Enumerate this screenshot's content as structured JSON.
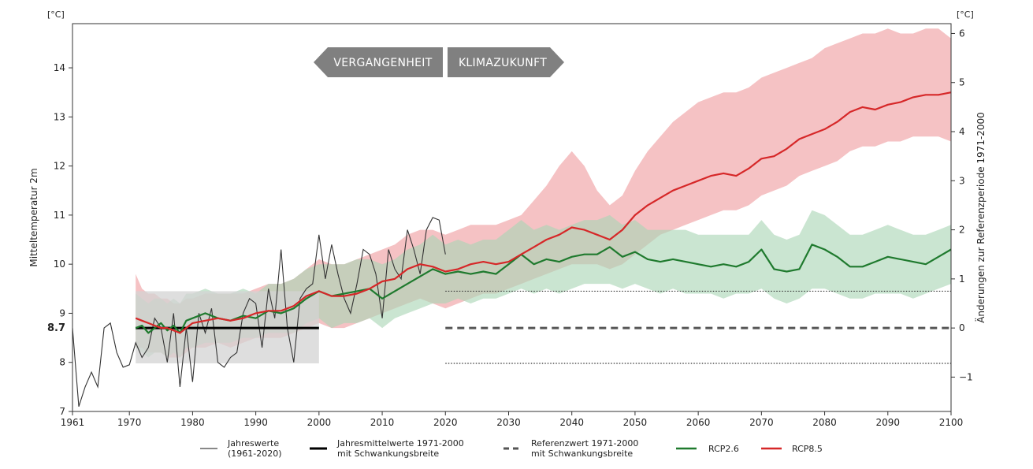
{
  "chart_data": {
    "type": "line",
    "title": "",
    "xlabel": "",
    "ylabel": "Mitteltemperatur 2m",
    "ylabel_right": "Änderungen zur Referenzperiode 1971-2000",
    "unit_left": "[°C]",
    "unit_right": "[°C]",
    "xlim": [
      1961,
      2100
    ],
    "ylim": [
      7,
      14.9
    ],
    "y2lim": [
      -1.7,
      6.2
    ],
    "reference_value": 8.7,
    "reference_label": "8.7",
    "xticks": [
      1961,
      1970,
      1980,
      1990,
      2000,
      2010,
      2020,
      2030,
      2040,
      2050,
      2060,
      2070,
      2080,
      2090,
      2100
    ],
    "yticks": [
      7,
      8,
      9,
      10,
      11,
      12,
      13,
      14
    ],
    "y2ticks": [
      -1,
      0,
      1,
      2,
      3,
      4,
      5,
      6
    ],
    "y2tick_labels": [
      "−1",
      "0",
      "1",
      "2",
      "3",
      "4",
      "5",
      "6"
    ],
    "banner": {
      "past": "VERGANGENHEIT",
      "future": "KLIMAZUKUNFT"
    },
    "colors": {
      "observed": "#333333",
      "rcp26": "#1f7a2e",
      "rcp85": "#d62728",
      "rcp26_band": "#a9d5b5",
      "rcp85_band": "#ef9ca0",
      "ref_box": "#d3d3d3",
      "banner": "#808080"
    },
    "legend": [
      {
        "key": "observed",
        "label": [
          "Jahreswerte",
          "(1961-2020)"
        ]
      },
      {
        "key": "mean",
        "label": [
          "Jahresmittelwerte 1971-2000",
          "mit Schwankungsbreite"
        ]
      },
      {
        "key": "ref",
        "label": [
          "Referenzwert 1971-2000",
          "mit Schwankungsbreite"
        ]
      },
      {
        "key": "rcp26",
        "label": [
          "RCP2.6"
        ]
      },
      {
        "key": "rcp85",
        "label": [
          "RCP8.5"
        ]
      }
    ],
    "reference_period": {
      "start": 1971,
      "end": 2000,
      "mean": 8.7,
      "low": 7.98,
      "high": 9.45,
      "future_start": 2020,
      "future_end": 2100
    },
    "observed": {
      "name": "Jahreswerte (1961-2020)",
      "x": [
        1961,
        1962,
        1963,
        1964,
        1965,
        1966,
        1967,
        1968,
        1969,
        1970,
        1971,
        1972,
        1973,
        1974,
        1975,
        1976,
        1977,
        1978,
        1979,
        1980,
        1981,
        1982,
        1983,
        1984,
        1985,
        1986,
        1987,
        1988,
        1989,
        1990,
        1991,
        1992,
        1993,
        1994,
        1995,
        1996,
        1997,
        1998,
        1999,
        2000,
        2001,
        2002,
        2003,
        2004,
        2005,
        2006,
        2007,
        2008,
        2009,
        2010,
        2011,
        2012,
        2013,
        2014,
        2015,
        2016,
        2017,
        2018,
        2019,
        2020
      ],
      "y": [
        8.7,
        7.1,
        7.5,
        7.8,
        7.5,
        8.7,
        8.8,
        8.2,
        7.9,
        7.95,
        8.4,
        8.1,
        8.3,
        8.9,
        8.7,
        8.0,
        9.0,
        7.5,
        8.7,
        7.6,
        9.0,
        8.6,
        9.1,
        8.0,
        7.9,
        8.1,
        8.2,
        9.0,
        9.3,
        9.2,
        8.3,
        9.5,
        8.9,
        10.3,
        8.7,
        8.0,
        9.3,
        9.5,
        9.6,
        10.6,
        9.7,
        10.4,
        9.8,
        9.3,
        9.0,
        9.6,
        10.3,
        10.2,
        9.8,
        8.9,
        10.3,
        9.9,
        9.7,
        10.7,
        10.3,
        9.8,
        10.7,
        10.95,
        10.9,
        10.2
      ]
    },
    "series": [
      {
        "name": "RCP2.6",
        "x": [
          1971,
          1972,
          1973,
          1974,
          1975,
          1976,
          1977,
          1978,
          1979,
          1980,
          1982,
          1984,
          1986,
          1988,
          1990,
          1992,
          1994,
          1996,
          1998,
          2000,
          2002,
          2004,
          2006,
          2008,
          2010,
          2012,
          2014,
          2016,
          2018,
          2020,
          2022,
          2024,
          2026,
          2028,
          2030,
          2032,
          2034,
          2036,
          2038,
          2040,
          2042,
          2044,
          2046,
          2048,
          2050,
          2052,
          2054,
          2056,
          2058,
          2060,
          2062,
          2064,
          2066,
          2068,
          2070,
          2072,
          2074,
          2076,
          2078,
          2080,
          2082,
          2084,
          2086,
          2088,
          2090,
          2092,
          2094,
          2096,
          2098,
          2100
        ],
        "y": [
          8.7,
          8.75,
          8.6,
          8.7,
          8.8,
          8.65,
          8.75,
          8.6,
          8.85,
          8.9,
          9.0,
          8.9,
          8.85,
          8.95,
          8.9,
          9.05,
          9.0,
          9.1,
          9.3,
          9.45,
          9.35,
          9.4,
          9.45,
          9.5,
          9.3,
          9.45,
          9.6,
          9.75,
          9.9,
          9.8,
          9.85,
          9.8,
          9.85,
          9.8,
          10.0,
          10.2,
          10.0,
          10.1,
          10.05,
          10.15,
          10.2,
          10.2,
          10.35,
          10.15,
          10.25,
          10.1,
          10.05,
          10.1,
          10.05,
          10.0,
          9.95,
          10.0,
          9.95,
          10.05,
          10.3,
          9.9,
          9.85,
          9.9,
          10.4,
          10.3,
          10.15,
          9.95,
          9.95,
          10.05,
          10.15,
          10.1,
          10.05,
          10.0,
          10.15,
          10.3
        ],
        "low": [
          8.3,
          8.2,
          8.1,
          8.2,
          8.2,
          8.1,
          8.2,
          8.1,
          8.3,
          8.3,
          8.4,
          8.4,
          8.4,
          8.5,
          8.5,
          8.6,
          8.6,
          8.6,
          8.8,
          8.9,
          8.7,
          8.8,
          8.8,
          8.9,
          8.7,
          8.9,
          9.0,
          9.1,
          9.2,
          9.2,
          9.3,
          9.2,
          9.3,
          9.3,
          9.4,
          9.5,
          9.4,
          9.5,
          9.4,
          9.5,
          9.6,
          9.6,
          9.6,
          9.5,
          9.6,
          9.5,
          9.4,
          9.5,
          9.4,
          9.4,
          9.4,
          9.3,
          9.4,
          9.4,
          9.5,
          9.3,
          9.2,
          9.3,
          9.5,
          9.5,
          9.4,
          9.3,
          9.3,
          9.4,
          9.4,
          9.4,
          9.3,
          9.4,
          9.5,
          9.6
        ],
        "high": [
          9.4,
          9.3,
          9.2,
          9.3,
          9.3,
          9.2,
          9.3,
          9.2,
          9.4,
          9.4,
          9.5,
          9.4,
          9.4,
          9.5,
          9.4,
          9.6,
          9.6,
          9.7,
          9.9,
          10.0,
          10.0,
          10.0,
          10.1,
          10.1,
          10.0,
          10.1,
          10.3,
          10.4,
          10.6,
          10.4,
          10.5,
          10.4,
          10.5,
          10.5,
          10.7,
          10.9,
          10.7,
          10.8,
          10.7,
          10.8,
          10.9,
          10.9,
          11.0,
          10.8,
          10.9,
          10.7,
          10.7,
          10.7,
          10.7,
          10.6,
          10.6,
          10.6,
          10.6,
          10.6,
          10.9,
          10.6,
          10.5,
          10.6,
          11.1,
          11.0,
          10.8,
          10.6,
          10.6,
          10.7,
          10.8,
          10.7,
          10.6,
          10.6,
          10.7,
          10.8
        ]
      },
      {
        "name": "RCP8.5",
        "x": [
          1971,
          1972,
          1973,
          1974,
          1975,
          1976,
          1977,
          1978,
          1979,
          1980,
          1982,
          1984,
          1986,
          1988,
          1990,
          1992,
          1994,
          1996,
          1998,
          2000,
          2002,
          2004,
          2006,
          2008,
          2010,
          2012,
          2014,
          2016,
          2018,
          2020,
          2022,
          2024,
          2026,
          2028,
          2030,
          2032,
          2034,
          2036,
          2038,
          2040,
          2042,
          2044,
          2046,
          2048,
          2050,
          2052,
          2054,
          2056,
          2058,
          2060,
          2062,
          2064,
          2066,
          2068,
          2070,
          2072,
          2074,
          2076,
          2078,
          2080,
          2082,
          2084,
          2086,
          2088,
          2090,
          2092,
          2094,
          2096,
          2098,
          2100
        ],
        "y": [
          8.9,
          8.85,
          8.8,
          8.75,
          8.7,
          8.7,
          8.65,
          8.6,
          8.7,
          8.8,
          8.85,
          8.9,
          8.85,
          8.9,
          9.0,
          9.05,
          9.05,
          9.15,
          9.35,
          9.45,
          9.35,
          9.35,
          9.4,
          9.5,
          9.65,
          9.7,
          9.9,
          10.0,
          9.95,
          9.85,
          9.9,
          10.0,
          10.05,
          10.0,
          10.05,
          10.2,
          10.35,
          10.5,
          10.6,
          10.75,
          10.7,
          10.6,
          10.5,
          10.7,
          11.0,
          11.2,
          11.35,
          11.5,
          11.6,
          11.7,
          11.8,
          11.85,
          11.8,
          11.95,
          12.15,
          12.2,
          12.35,
          12.55,
          12.65,
          12.75,
          12.9,
          13.1,
          13.2,
          13.15,
          13.25,
          13.3,
          13.4,
          13.45,
          13.45,
          13.5
        ],
        "low": [
          8.3,
          8.3,
          8.2,
          8.2,
          8.2,
          8.1,
          8.1,
          8.1,
          8.2,
          8.3,
          8.3,
          8.4,
          8.3,
          8.4,
          8.5,
          8.5,
          8.5,
          8.6,
          8.7,
          8.8,
          8.7,
          8.7,
          8.8,
          8.9,
          9.0,
          9.1,
          9.2,
          9.3,
          9.2,
          9.1,
          9.2,
          9.3,
          9.4,
          9.4,
          9.5,
          9.6,
          9.7,
          9.8,
          9.9,
          10.0,
          10.0,
          10.0,
          9.9,
          10.0,
          10.2,
          10.4,
          10.6,
          10.7,
          10.8,
          10.9,
          11.0,
          11.1,
          11.1,
          11.2,
          11.4,
          11.5,
          11.6,
          11.8,
          11.9,
          12.0,
          12.1,
          12.3,
          12.4,
          12.4,
          12.5,
          12.5,
          12.6,
          12.6,
          12.6,
          12.5
        ],
        "high": [
          9.8,
          9.5,
          9.4,
          9.4,
          9.3,
          9.3,
          9.2,
          9.2,
          9.3,
          9.3,
          9.4,
          9.4,
          9.4,
          9.4,
          9.5,
          9.6,
          9.6,
          9.7,
          9.9,
          10.1,
          10.0,
          10.0,
          10.1,
          10.2,
          10.3,
          10.4,
          10.6,
          10.7,
          10.7,
          10.6,
          10.7,
          10.8,
          10.8,
          10.8,
          10.9,
          11.0,
          11.3,
          11.6,
          12.0,
          12.3,
          12.0,
          11.5,
          11.2,
          11.4,
          11.9,
          12.3,
          12.6,
          12.9,
          13.1,
          13.3,
          13.4,
          13.5,
          13.5,
          13.6,
          13.8,
          13.9,
          14.0,
          14.1,
          14.2,
          14.4,
          14.5,
          14.6,
          14.7,
          14.7,
          14.8,
          14.7,
          14.7,
          14.8,
          14.8,
          14.6
        ]
      }
    ]
  }
}
